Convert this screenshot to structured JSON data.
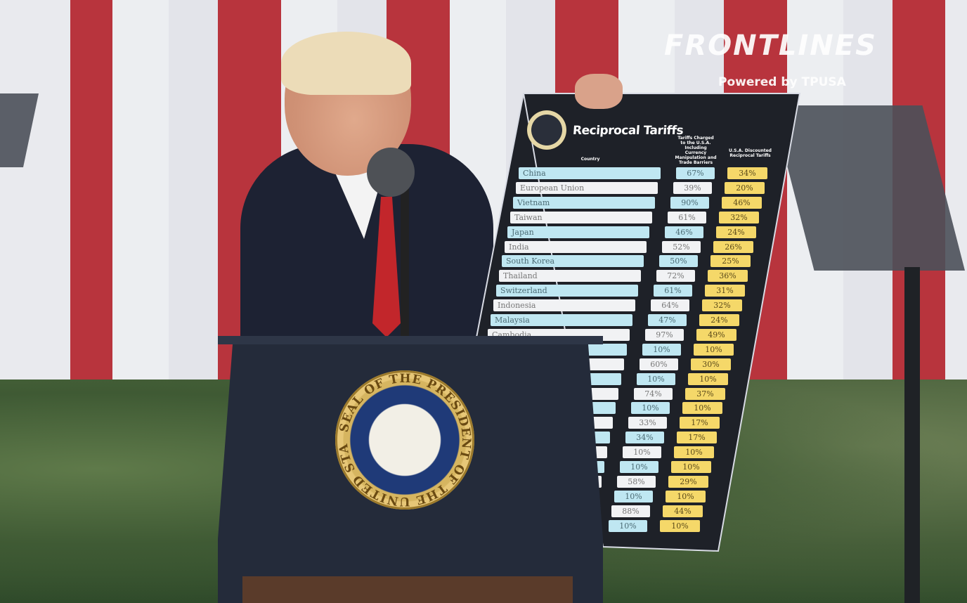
{
  "watermark": {
    "brand": "FRONTLINES",
    "powered_by": "Powered by",
    "partner": "TPUSA"
  },
  "board": {
    "title": "Reciprocal Tariffs",
    "headers": {
      "country": "Country",
      "charged": "Tariffs Charged to the U.S.A. Including Currency Manipulation and Trade Barriers",
      "discounted": "U.S.A. Discounted Reciprocal Tariffs"
    },
    "rows": [
      {
        "country": "China",
        "charged": "67%",
        "discounted": "34%"
      },
      {
        "country": "European Union",
        "charged": "39%",
        "discounted": "20%"
      },
      {
        "country": "Vietnam",
        "charged": "90%",
        "discounted": "46%"
      },
      {
        "country": "Taiwan",
        "charged": "61%",
        "discounted": "32%"
      },
      {
        "country": "Japan",
        "charged": "46%",
        "discounted": "24%"
      },
      {
        "country": "India",
        "charged": "52%",
        "discounted": "26%"
      },
      {
        "country": "South Korea",
        "charged": "50%",
        "discounted": "25%"
      },
      {
        "country": "Thailand",
        "charged": "72%",
        "discounted": "36%"
      },
      {
        "country": "Switzerland",
        "charged": "61%",
        "discounted": "31%"
      },
      {
        "country": "Indonesia",
        "charged": "64%",
        "discounted": "32%"
      },
      {
        "country": "Malaysia",
        "charged": "47%",
        "discounted": "24%"
      },
      {
        "country": "Cambodia",
        "charged": "97%",
        "discounted": "49%"
      },
      {
        "country": "",
        "charged": "10%",
        "discounted": "10%"
      },
      {
        "country": "",
        "charged": "60%",
        "discounted": "30%"
      },
      {
        "country": "",
        "charged": "10%",
        "discounted": "10%"
      },
      {
        "country": "",
        "charged": "74%",
        "discounted": "37%"
      },
      {
        "country": "",
        "charged": "10%",
        "discounted": "10%"
      },
      {
        "country": "",
        "charged": "33%",
        "discounted": "17%"
      },
      {
        "country": "",
        "charged": "34%",
        "discounted": "17%"
      },
      {
        "country": "",
        "charged": "10%",
        "discounted": "10%"
      },
      {
        "country": "",
        "charged": "10%",
        "discounted": "10%"
      },
      {
        "country": "",
        "charged": "58%",
        "discounted": "29%"
      },
      {
        "country": "",
        "charged": "10%",
        "discounted": "10%"
      },
      {
        "country": "",
        "charged": "88%",
        "discounted": "44%"
      },
      {
        "country": "",
        "charged": "10%",
        "discounted": "10%"
      }
    ]
  },
  "podium": {
    "seal_text_top": "SEAL OF THE PRESIDENT OF THE UNITED STATES"
  },
  "colors": {
    "stripe_red": "#b8343d",
    "row_blue": "#bfe7f2",
    "row_yellow": "#f5d869",
    "board": "#1e2128"
  }
}
